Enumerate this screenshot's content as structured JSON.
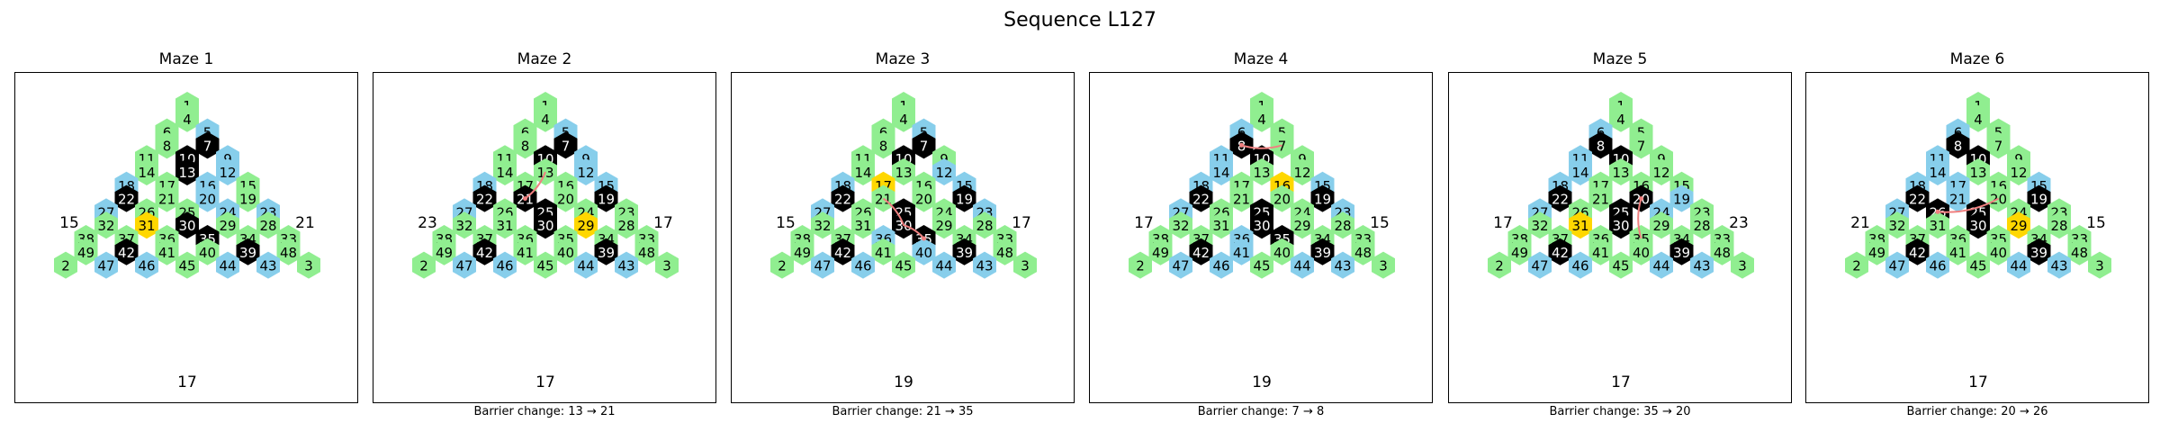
{
  "title": "Sequence L127",
  "colors": {
    "green": "#90ee90",
    "blue": "#87ceeb",
    "black": "#000000",
    "gold": "#ffd700",
    "path": "#f08080",
    "text_dark": "#000000",
    "text_light": "#ffffff"
  },
  "board": {
    "rows": [
      [
        1
      ],
      [
        4
      ],
      [
        6,
        5
      ],
      [
        8,
        7
      ],
      [
        11,
        10,
        9
      ],
      [
        14,
        13,
        12
      ],
      [
        18,
        17,
        16,
        15
      ],
      [
        22,
        21,
        20,
        19
      ],
      [
        27,
        26,
        25,
        24,
        23
      ],
      [
        32,
        31,
        30,
        29,
        28
      ],
      [
        38,
        37,
        36,
        35,
        34,
        33
      ],
      [
        49,
        42,
        41,
        40,
        39,
        48
      ],
      [
        2,
        47,
        46,
        45,
        44,
        43,
        3
      ]
    ]
  },
  "mazes": [
    {
      "title": "Maze 1",
      "left": "15",
      "right": "21",
      "bottom": "17",
      "caption": "",
      "blue": [
        5,
        9,
        12,
        16,
        18,
        20,
        23,
        24,
        27,
        43,
        44,
        46,
        47
      ],
      "black": [
        7,
        10,
        13,
        22,
        30,
        35,
        39,
        42
      ],
      "gold": [
        31
      ],
      "path": []
    },
    {
      "title": "Maze 2",
      "left": "23",
      "right": "17",
      "bottom": "17",
      "caption": "Barrier change: 13 → 21",
      "blue": [
        5,
        9,
        12,
        15,
        18,
        27,
        43,
        44,
        46,
        47
      ],
      "black": [
        7,
        10,
        19,
        21,
        22,
        25,
        30,
        39,
        42
      ],
      "gold": [
        29
      ],
      "path": [
        13,
        21
      ]
    },
    {
      "title": "Maze 3",
      "left": "15",
      "right": "17",
      "bottom": "19",
      "caption": "Barrier change: 21 → 35",
      "blue": [
        5,
        12,
        15,
        18,
        23,
        27,
        36,
        40,
        43,
        44,
        46,
        47
      ],
      "black": [
        7,
        10,
        19,
        22,
        25,
        30,
        35,
        39,
        42
      ],
      "gold": [
        17
      ],
      "path": [
        21,
        30,
        35
      ]
    },
    {
      "title": "Maze 4",
      "left": "17",
      "right": "15",
      "bottom": "19",
      "caption": "Barrier change: 7 → 8",
      "blue": [
        6,
        11,
        14,
        15,
        18,
        23,
        27,
        36,
        41,
        43,
        44,
        46,
        47
      ],
      "black": [
        8,
        10,
        19,
        22,
        25,
        30,
        35,
        39,
        42
      ],
      "gold": [
        16
      ],
      "path": [
        7,
        8
      ]
    },
    {
      "title": "Maze 5",
      "left": "17",
      "right": "23",
      "bottom": "17",
      "caption": "Barrier change: 35 → 20",
      "blue": [
        6,
        11,
        14,
        18,
        19,
        24,
        27,
        43,
        44,
        46,
        47
      ],
      "black": [
        8,
        10,
        20,
        22,
        25,
        30,
        39,
        42
      ],
      "gold": [
        31
      ],
      "path": [
        35,
        20
      ]
    },
    {
      "title": "Maze 6",
      "left": "21",
      "right": "15",
      "bottom": "17",
      "caption": "Barrier change: 20 → 26",
      "blue": [
        6,
        11,
        14,
        15,
        17,
        18,
        21,
        27,
        43,
        44,
        46,
        47
      ],
      "black": [
        8,
        10,
        19,
        22,
        25,
        26,
        30,
        39,
        42
      ],
      "gold": [
        29
      ],
      "path": [
        20,
        26
      ]
    }
  ]
}
